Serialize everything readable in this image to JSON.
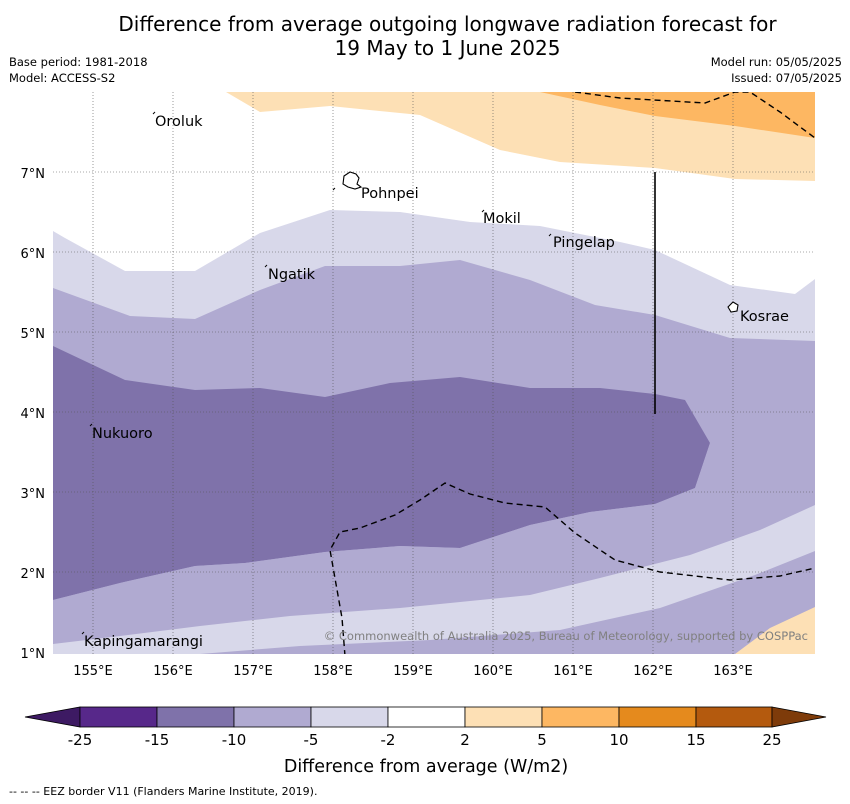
{
  "title": {
    "line1": "Difference from average outgoing longwave radiation forecast for",
    "line2": "19 May to 1 June 2025"
  },
  "meta": {
    "base_period": "Base period: 1981-2018",
    "model": "Model: ACCESS-S2",
    "model_run": "Model run: 05/05/2025",
    "issued": "Issued: 07/05/2025"
  },
  "map": {
    "lon_ticks": [
      "155°E",
      "156°E",
      "157°E",
      "158°E",
      "159°E",
      "160°E",
      "161°E",
      "162°E",
      "163°E"
    ],
    "lat_ticks": [
      "1°N",
      "2°N",
      "3°N",
      "4°N",
      "5°N",
      "6°N",
      "7°N"
    ],
    "places": {
      "oroluk": "Oroluk",
      "pohnpei": "Pohnpei",
      "mokil": "Mokil",
      "pingelap": "Pingelap",
      "ngatik": "Ngatik",
      "kosrae": "Kosrae",
      "nukuoro": "Nukuoro",
      "kapingamarangi": "Kapingamarangi"
    },
    "copyright": "© Commonwealth of Australia 2025, Bureau of Meteorology, supported by COSPPac"
  },
  "legend": {
    "ticks": [
      "-25",
      "-15",
      "-10",
      "-5",
      "-2",
      "2",
      "5",
      "10",
      "15",
      "25"
    ],
    "colors": [
      "#3d1a63",
      "#57288a",
      "#7f72aa",
      "#b0aad1",
      "#d8d8ea",
      "#ffffff",
      "#fde0b5",
      "#fdb762",
      "#e58a1d",
      "#b45a0e",
      "#7e3b0a"
    ],
    "label": "Difference from average (W/m2)"
  },
  "footer": "--  --  -- EEZ border V11 (Flanders Marine Institute, 2019)."
}
